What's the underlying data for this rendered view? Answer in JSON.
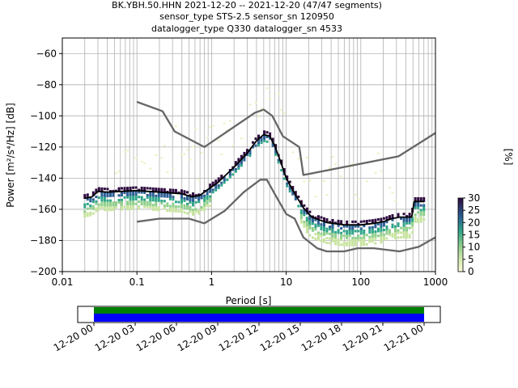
{
  "title_lines": [
    "BK.YBH.50.HHN   2021-12-20 -- 2021-12-20  (47/47 segments)",
    "sensor_type STS-2.5 sensor_sn 120950",
    "datalogger_type Q330 datalogger_sn 4533"
  ],
  "chart_data": {
    "type": "heatmap",
    "xlabel": "Period [s]",
    "ylabel": "Power [m²/s⁴/Hz] [dB]",
    "xscale": "log",
    "xlim": [
      0.01,
      1000
    ],
    "ylim": [
      -200,
      -50
    ],
    "grid": true,
    "x_ticks": [
      {
        "v": 0.01,
        "label": "0.01"
      },
      {
        "v": 0.1,
        "label": "0.1"
      },
      {
        "v": 1,
        "label": "1"
      },
      {
        "v": 10,
        "label": "10"
      },
      {
        "v": 100,
        "label": "100"
      },
      {
        "v": 1000,
        "label": "1000"
      }
    ],
    "y_ticks": [
      {
        "v": -60,
        "label": "−60"
      },
      {
        "v": -80,
        "label": "−80"
      },
      {
        "v": -100,
        "label": "−100"
      },
      {
        "v": -120,
        "label": "−120"
      },
      {
        "v": -140,
        "label": "−140"
      },
      {
        "v": -160,
        "label": "−160"
      },
      {
        "v": -180,
        "label": "−180"
      },
      {
        "v": -200,
        "label": "−200"
      }
    ],
    "colorbar": {
      "label": "[%]",
      "min": 0,
      "max": 30,
      "ticks": [
        "0",
        "5",
        "10",
        "15",
        "20",
        "25",
        "30"
      ]
    },
    "series": [
      {
        "role": "noise-model-high",
        "color": "#666666",
        "points": [
          [
            0.1,
            -91
          ],
          [
            0.22,
            -97
          ],
          [
            0.32,
            -110
          ],
          [
            0.8,
            -120
          ],
          [
            3.8,
            -98
          ],
          [
            5,
            -96
          ],
          [
            6.5,
            -100
          ],
          [
            9,
            -113
          ],
          [
            15,
            -120
          ],
          [
            17,
            -138
          ],
          [
            320,
            -126
          ],
          [
            1000,
            -111
          ]
        ]
      },
      {
        "role": "noise-model-high",
        "color": "#666666",
        "points": [
          [
            0.1,
            -168
          ],
          [
            0.2,
            -166
          ],
          [
            0.5,
            -166
          ],
          [
            0.8,
            -169
          ],
          [
            1.5,
            -161
          ],
          [
            2.7,
            -149
          ],
          [
            4.5,
            -141
          ],
          [
            5.5,
            -141
          ],
          [
            7,
            -150
          ],
          [
            10,
            -163
          ],
          [
            13,
            -166
          ],
          [
            17,
            -178
          ],
          [
            26,
            -185
          ],
          [
            35,
            -187
          ],
          [
            60,
            -187
          ],
          [
            90,
            -185
          ],
          [
            150,
            -185
          ],
          [
            330,
            -187
          ],
          [
            600,
            -184
          ],
          [
            1000,
            -178
          ]
        ]
      },
      {
        "role": "mode",
        "color": "#000000",
        "points": [
          [
            0.02,
            -153
          ],
          [
            0.025,
            -152
          ],
          [
            0.03,
            -148.5
          ],
          [
            0.04,
            -149
          ],
          [
            0.1,
            -148
          ],
          [
            0.2,
            -149
          ],
          [
            0.4,
            -150
          ],
          [
            0.55,
            -152
          ],
          [
            0.7,
            -151
          ],
          [
            0.85,
            -148
          ],
          [
            1.2,
            -143
          ],
          [
            2,
            -133
          ],
          [
            3,
            -124
          ],
          [
            4,
            -116
          ],
          [
            5,
            -112
          ],
          [
            6,
            -113
          ],
          [
            7,
            -119
          ],
          [
            8.5,
            -130
          ],
          [
            10,
            -140
          ],
          [
            13,
            -150
          ],
          [
            17,
            -159
          ],
          [
            22,
            -165
          ],
          [
            35,
            -168.5
          ],
          [
            60,
            -170
          ],
          [
            100,
            -170
          ],
          [
            150,
            -169
          ],
          [
            200,
            -168
          ],
          [
            260,
            -166
          ],
          [
            330,
            -165
          ],
          [
            480,
            -165
          ],
          [
            520,
            -155
          ],
          [
            700,
            -155
          ]
        ]
      }
    ]
  }
}
